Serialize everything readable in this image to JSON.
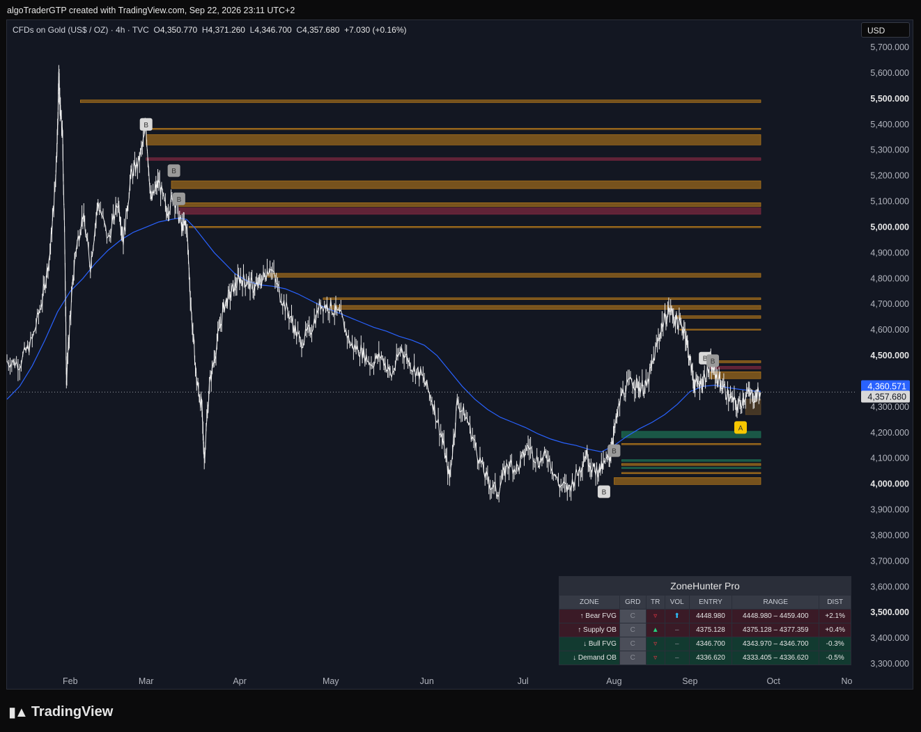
{
  "header": {
    "credit": "algoTraderGTP created with TradingView.com, Sep 22, 2026 23:11 UTC+2"
  },
  "legend": {
    "symbol": "CFDs on Gold (US$ / OZ) · 4h · TVC",
    "o_label": "O",
    "o": "4,350.770",
    "h_label": "H",
    "h": "4,371.260",
    "l_label": "L",
    "l": "4,346.700",
    "c_label": "C",
    "c": "4,357.680",
    "change": "+7.030 (+0.16%)"
  },
  "currency": "USD",
  "brand": "TradingView",
  "colors": {
    "background": "#131722",
    "ma": "#2962ff",
    "zone_orange": "#c8841a",
    "zone_red": "#8b2a44",
    "zone_green": "#1e7a5a",
    "badge_yellow": "#f7c600"
  },
  "chart_data": {
    "type": "line",
    "yaxis": {
      "ticks": [
        5700,
        5600,
        5500,
        5400,
        5300,
        5200,
        5100,
        5000,
        4900,
        4800,
        4700,
        4600,
        4500,
        4400,
        4300,
        4200,
        4100,
        4000,
        3900,
        3800,
        3700,
        3600,
        3500,
        3400,
        3300
      ],
      "tick_labels": [
        "5,700.000",
        "5,600.000",
        "5,500.000",
        "5,400.000",
        "5,300.000",
        "5,200.000",
        "5,100.000",
        "5,000.000",
        "4,900.000",
        "4,800.000",
        "4,700.000",
        "4,600.000",
        "4,500.000",
        "",
        "4,300.000",
        "4,200.000",
        "4,100.000",
        "4,000.000",
        "3,900.000",
        "3,800.000",
        "3,700.000",
        "3,600.000",
        "3,500.000",
        "3,400.000",
        "3,300.000"
      ],
      "bold_ticks": [
        5500,
        5000,
        4500,
        4000,
        3500
      ],
      "ylim": [
        3250,
        5750
      ]
    },
    "xaxis": {
      "labels": [
        "Feb",
        "Mar",
        "Apr",
        "May",
        "Jun",
        "Jul",
        "Aug",
        "Sep",
        "Oct",
        "No"
      ],
      "positions": [
        0.5,
        3.5,
        7.2,
        10.8,
        14.6,
        18.4,
        22.0,
        25.0,
        28.3,
        31.2
      ],
      "xlim": [
        -2.0,
        31.6
      ]
    },
    "price_labels": [
      {
        "value": 4360.571,
        "text": "4,360.571",
        "kind": "ma"
      },
      {
        "value": 4357.68,
        "text": "4,357.680",
        "kind": "last"
      }
    ],
    "price_path": [
      [
        -2.0,
        4480
      ],
      [
        -1.5,
        4470
      ],
      [
        -1.0,
        4560
      ],
      [
        -0.6,
        4720
      ],
      [
        -0.3,
        4900
      ],
      [
        -0.1,
        5150
      ],
      [
        0.0,
        5380
      ],
      [
        0.05,
        5590
      ],
      [
        0.1,
        5460
      ],
      [
        0.2,
        5350
      ],
      [
        0.3,
        4850
      ],
      [
        0.35,
        4400
      ],
      [
        0.5,
        4650
      ],
      [
        0.7,
        4900
      ],
      [
        1.0,
        5050
      ],
      [
        1.3,
        4850
      ],
      [
        1.6,
        5100
      ],
      [
        2.0,
        4950
      ],
      [
        2.4,
        5100
      ],
      [
        2.6,
        4950
      ],
      [
        2.9,
        5200
      ],
      [
        3.2,
        5250
      ],
      [
        3.5,
        5380
      ],
      [
        3.7,
        5100
      ],
      [
        4.0,
        5180
      ],
      [
        4.3,
        5060
      ],
      [
        4.6,
        5120
      ],
      [
        4.9,
        5000
      ],
      [
        5.1,
        5010
      ],
      [
        5.3,
        4650
      ],
      [
        5.5,
        4400
      ],
      [
        5.7,
        4300
      ],
      [
        5.8,
        4100
      ],
      [
        6.0,
        4380
      ],
      [
        6.3,
        4550
      ],
      [
        6.6,
        4700
      ],
      [
        6.9,
        4750
      ],
      [
        7.2,
        4800
      ],
      [
        7.5,
        4790
      ],
      [
        7.8,
        4760
      ],
      [
        8.1,
        4800
      ],
      [
        8.4,
        4850
      ],
      [
        8.8,
        4740
      ],
      [
        9.2,
        4650
      ],
      [
        9.6,
        4550
      ],
      [
        10.0,
        4600
      ],
      [
        10.4,
        4700
      ],
      [
        10.8,
        4690
      ],
      [
        11.2,
        4650
      ],
      [
        11.6,
        4540
      ],
      [
        12.0,
        4520
      ],
      [
        12.4,
        4470
      ],
      [
        12.8,
        4500
      ],
      [
        13.2,
        4420
      ],
      [
        13.6,
        4530
      ],
      [
        14.0,
        4460
      ],
      [
        14.4,
        4420
      ],
      [
        14.8,
        4330
      ],
      [
        15.2,
        4180
      ],
      [
        15.5,
        4020
      ],
      [
        15.8,
        4320
      ],
      [
        16.2,
        4250
      ],
      [
        16.6,
        4120
      ],
      [
        17.0,
        4010
      ],
      [
        17.4,
        3970
      ],
      [
        17.8,
        4080
      ],
      [
        18.2,
        4060
      ],
      [
        18.6,
        4150
      ],
      [
        19.0,
        4090
      ],
      [
        19.4,
        4110
      ],
      [
        19.8,
        4000
      ],
      [
        20.2,
        3980
      ],
      [
        20.6,
        4050
      ],
      [
        20.9,
        4120
      ],
      [
        21.2,
        4050
      ],
      [
        21.5,
        4060
      ],
      [
        21.8,
        4100
      ],
      [
        22.0,
        4200
      ],
      [
        22.3,
        4350
      ],
      [
        22.7,
        4400
      ],
      [
        23.0,
        4380
      ],
      [
        23.3,
        4380
      ],
      [
        23.6,
        4500
      ],
      [
        23.9,
        4620
      ],
      [
        24.2,
        4680
      ],
      [
        24.5,
        4630
      ],
      [
        24.8,
        4600
      ],
      [
        25.0,
        4480
      ],
      [
        25.2,
        4380
      ],
      [
        25.5,
        4400
      ],
      [
        25.8,
        4460
      ],
      [
        26.0,
        4430
      ],
      [
        26.3,
        4380
      ],
      [
        26.6,
        4330
      ],
      [
        26.9,
        4300
      ],
      [
        27.2,
        4350
      ],
      [
        27.5,
        4340
      ],
      [
        27.8,
        4357
      ]
    ],
    "ma_path": [
      [
        -2.0,
        4330
      ],
      [
        -1.5,
        4380
      ],
      [
        -1.0,
        4460
      ],
      [
        -0.5,
        4560
      ],
      [
        0.0,
        4670
      ],
      [
        0.5,
        4750
      ],
      [
        1.0,
        4800
      ],
      [
        1.5,
        4860
      ],
      [
        2.0,
        4910
      ],
      [
        2.5,
        4950
      ],
      [
        3.0,
        4980
      ],
      [
        3.5,
        5000
      ],
      [
        4.0,
        5020
      ],
      [
        4.5,
        5030
      ],
      [
        4.8,
        5035
      ],
      [
        5.1,
        5030
      ],
      [
        5.4,
        5000
      ],
      [
        5.8,
        4950
      ],
      [
        6.2,
        4900
      ],
      [
        6.6,
        4860
      ],
      [
        7.0,
        4820
      ],
      [
        7.5,
        4790
      ],
      [
        8.0,
        4775
      ],
      [
        8.5,
        4770
      ],
      [
        9.0,
        4760
      ],
      [
        9.5,
        4740
      ],
      [
        10.0,
        4715
      ],
      [
        10.5,
        4690
      ],
      [
        11.0,
        4670
      ],
      [
        11.5,
        4650
      ],
      [
        12.0,
        4630
      ],
      [
        12.5,
        4610
      ],
      [
        13.0,
        4595
      ],
      [
        13.5,
        4575
      ],
      [
        14.0,
        4560
      ],
      [
        14.5,
        4540
      ],
      [
        15.0,
        4500
      ],
      [
        15.5,
        4440
      ],
      [
        16.0,
        4380
      ],
      [
        16.5,
        4330
      ],
      [
        17.0,
        4290
      ],
      [
        17.5,
        4260
      ],
      [
        18.0,
        4240
      ],
      [
        18.5,
        4220
      ],
      [
        19.0,
        4195
      ],
      [
        19.5,
        4175
      ],
      [
        20.0,
        4160
      ],
      [
        20.5,
        4150
      ],
      [
        21.0,
        4135
      ],
      [
        21.5,
        4125
      ],
      [
        22.0,
        4150
      ],
      [
        22.5,
        4185
      ],
      [
        23.0,
        4215
      ],
      [
        23.5,
        4240
      ],
      [
        24.0,
        4270
      ],
      [
        24.5,
        4310
      ],
      [
        25.0,
        4360
      ],
      [
        25.5,
        4380
      ],
      [
        26.0,
        4385
      ],
      [
        26.5,
        4375
      ],
      [
        27.0,
        4368
      ],
      [
        27.5,
        4362
      ],
      [
        27.8,
        4361
      ]
    ],
    "zones": [
      {
        "x0": 0.9,
        "x1": 27.8,
        "y0": 5495,
        "y1": 5485,
        "kind": "orange"
      },
      {
        "x0": 3.5,
        "x1": 27.8,
        "y0": 5385,
        "y1": 5380,
        "kind": "orange"
      },
      {
        "x0": 3.5,
        "x1": 27.8,
        "y0": 5360,
        "y1": 5320,
        "kind": "orange"
      },
      {
        "x0": 3.5,
        "x1": 27.8,
        "y0": 5270,
        "y1": 5260,
        "kind": "red"
      },
      {
        "x0": 4.5,
        "x1": 27.8,
        "y0": 5180,
        "y1": 5150,
        "kind": "orange"
      },
      {
        "x0": 4.8,
        "x1": 27.8,
        "y0": 5095,
        "y1": 5080,
        "kind": "orange"
      },
      {
        "x0": 4.8,
        "x1": 27.8,
        "y0": 5075,
        "y1": 5050,
        "kind": "red"
      },
      {
        "x0": 5.2,
        "x1": 27.8,
        "y0": 5003,
        "y1": 4998,
        "kind": "orange"
      },
      {
        "x0": 8.3,
        "x1": 27.8,
        "y0": 4820,
        "y1": 4805,
        "kind": "orange"
      },
      {
        "x0": 10.5,
        "x1": 27.8,
        "y0": 4725,
        "y1": 4718,
        "kind": "orange"
      },
      {
        "x0": 10.8,
        "x1": 27.8,
        "y0": 4695,
        "y1": 4680,
        "kind": "orange"
      },
      {
        "x0": 24.5,
        "x1": 27.8,
        "y0": 4655,
        "y1": 4645,
        "kind": "orange"
      },
      {
        "x0": 24.6,
        "x1": 27.8,
        "y0": 4603,
        "y1": 4599,
        "kind": "orange"
      },
      {
        "x0": 25.8,
        "x1": 27.8,
        "y0": 4480,
        "y1": 4472,
        "kind": "orange"
      },
      {
        "x0": 25.8,
        "x1": 27.8,
        "y0": 4458,
        "y1": 4448,
        "kind": "red"
      },
      {
        "x0": 25.8,
        "x1": 27.8,
        "y0": 4437,
        "y1": 4410,
        "kind": "orange"
      },
      {
        "x0": 22.3,
        "x1": 27.8,
        "y0": 4205,
        "y1": 4180,
        "kind": "green"
      },
      {
        "x0": 22.3,
        "x1": 27.8,
        "y0": 4158,
        "y1": 4153,
        "kind": "orange"
      },
      {
        "x0": 22.3,
        "x1": 27.8,
        "y0": 4095,
        "y1": 4088,
        "kind": "green"
      },
      {
        "x0": 22.3,
        "x1": 27.8,
        "y0": 4080,
        "y1": 4072,
        "kind": "orange"
      },
      {
        "x0": 22.3,
        "x1": 27.8,
        "y0": 4065,
        "y1": 4060,
        "kind": "green"
      },
      {
        "x0": 22.3,
        "x1": 27.8,
        "y0": 4045,
        "y1": 4040,
        "kind": "orange"
      },
      {
        "x0": 22.0,
        "x1": 27.8,
        "y0": 4025,
        "y1": 3998,
        "kind": "orange"
      },
      {
        "x0": 27.2,
        "x1": 27.8,
        "y0": 4330,
        "y1": 4270,
        "kind": "brown"
      }
    ],
    "markers": [
      {
        "x": 3.5,
        "y": 5400,
        "label": "B",
        "color": "#d9d9d9"
      },
      {
        "x": 4.6,
        "y": 5220,
        "label": "B",
        "color": "#9a9a9a"
      },
      {
        "x": 4.8,
        "y": 5110,
        "label": "B",
        "color": "#9a9a9a"
      },
      {
        "x": 21.6,
        "y": 3970,
        "label": "B",
        "color": "#d9d9d9"
      },
      {
        "x": 22.0,
        "y": 4130,
        "label": "B",
        "color": "#9a9a9a"
      },
      {
        "x": 25.6,
        "y": 4490,
        "label": "B",
        "color": "#d9d9d9"
      },
      {
        "x": 25.9,
        "y": 4480,
        "label": "B",
        "color": "#9a9a9a"
      },
      {
        "x": 27.0,
        "y": 4220,
        "label": "A",
        "color": "#f7c600"
      }
    ]
  },
  "table": {
    "title": "ZoneHunter Pro",
    "headers": [
      "ZONE",
      "GRD",
      "TR",
      "VOL",
      "ENTRY",
      "RANGE",
      "DIST"
    ],
    "rows": [
      {
        "zone": "↑ Bear FVG",
        "grd": "C",
        "tr": "▿",
        "vol": "⬆",
        "entry": "4448.980",
        "range": "4448.980 – 4459.400",
        "dist": "+2.1%"
      },
      {
        "zone": "↑ Supply OB",
        "grd": "C",
        "tr": "▲",
        "vol": "–",
        "entry": "4375.128",
        "range": "4375.128 – 4377.359",
        "dist": "+0.4%"
      },
      {
        "zone": "↓ Bull FVG",
        "grd": "C",
        "tr": "▿",
        "vol": "–",
        "entry": "4346.700",
        "range": "4343.970 – 4346.700",
        "dist": "-0.3%"
      },
      {
        "zone": "↓ Demand OB",
        "grd": "C",
        "tr": "▿",
        "vol": "–",
        "entry": "4336.620",
        "range": "4333.405 – 4336.620",
        "dist": "-0.5%"
      }
    ]
  }
}
